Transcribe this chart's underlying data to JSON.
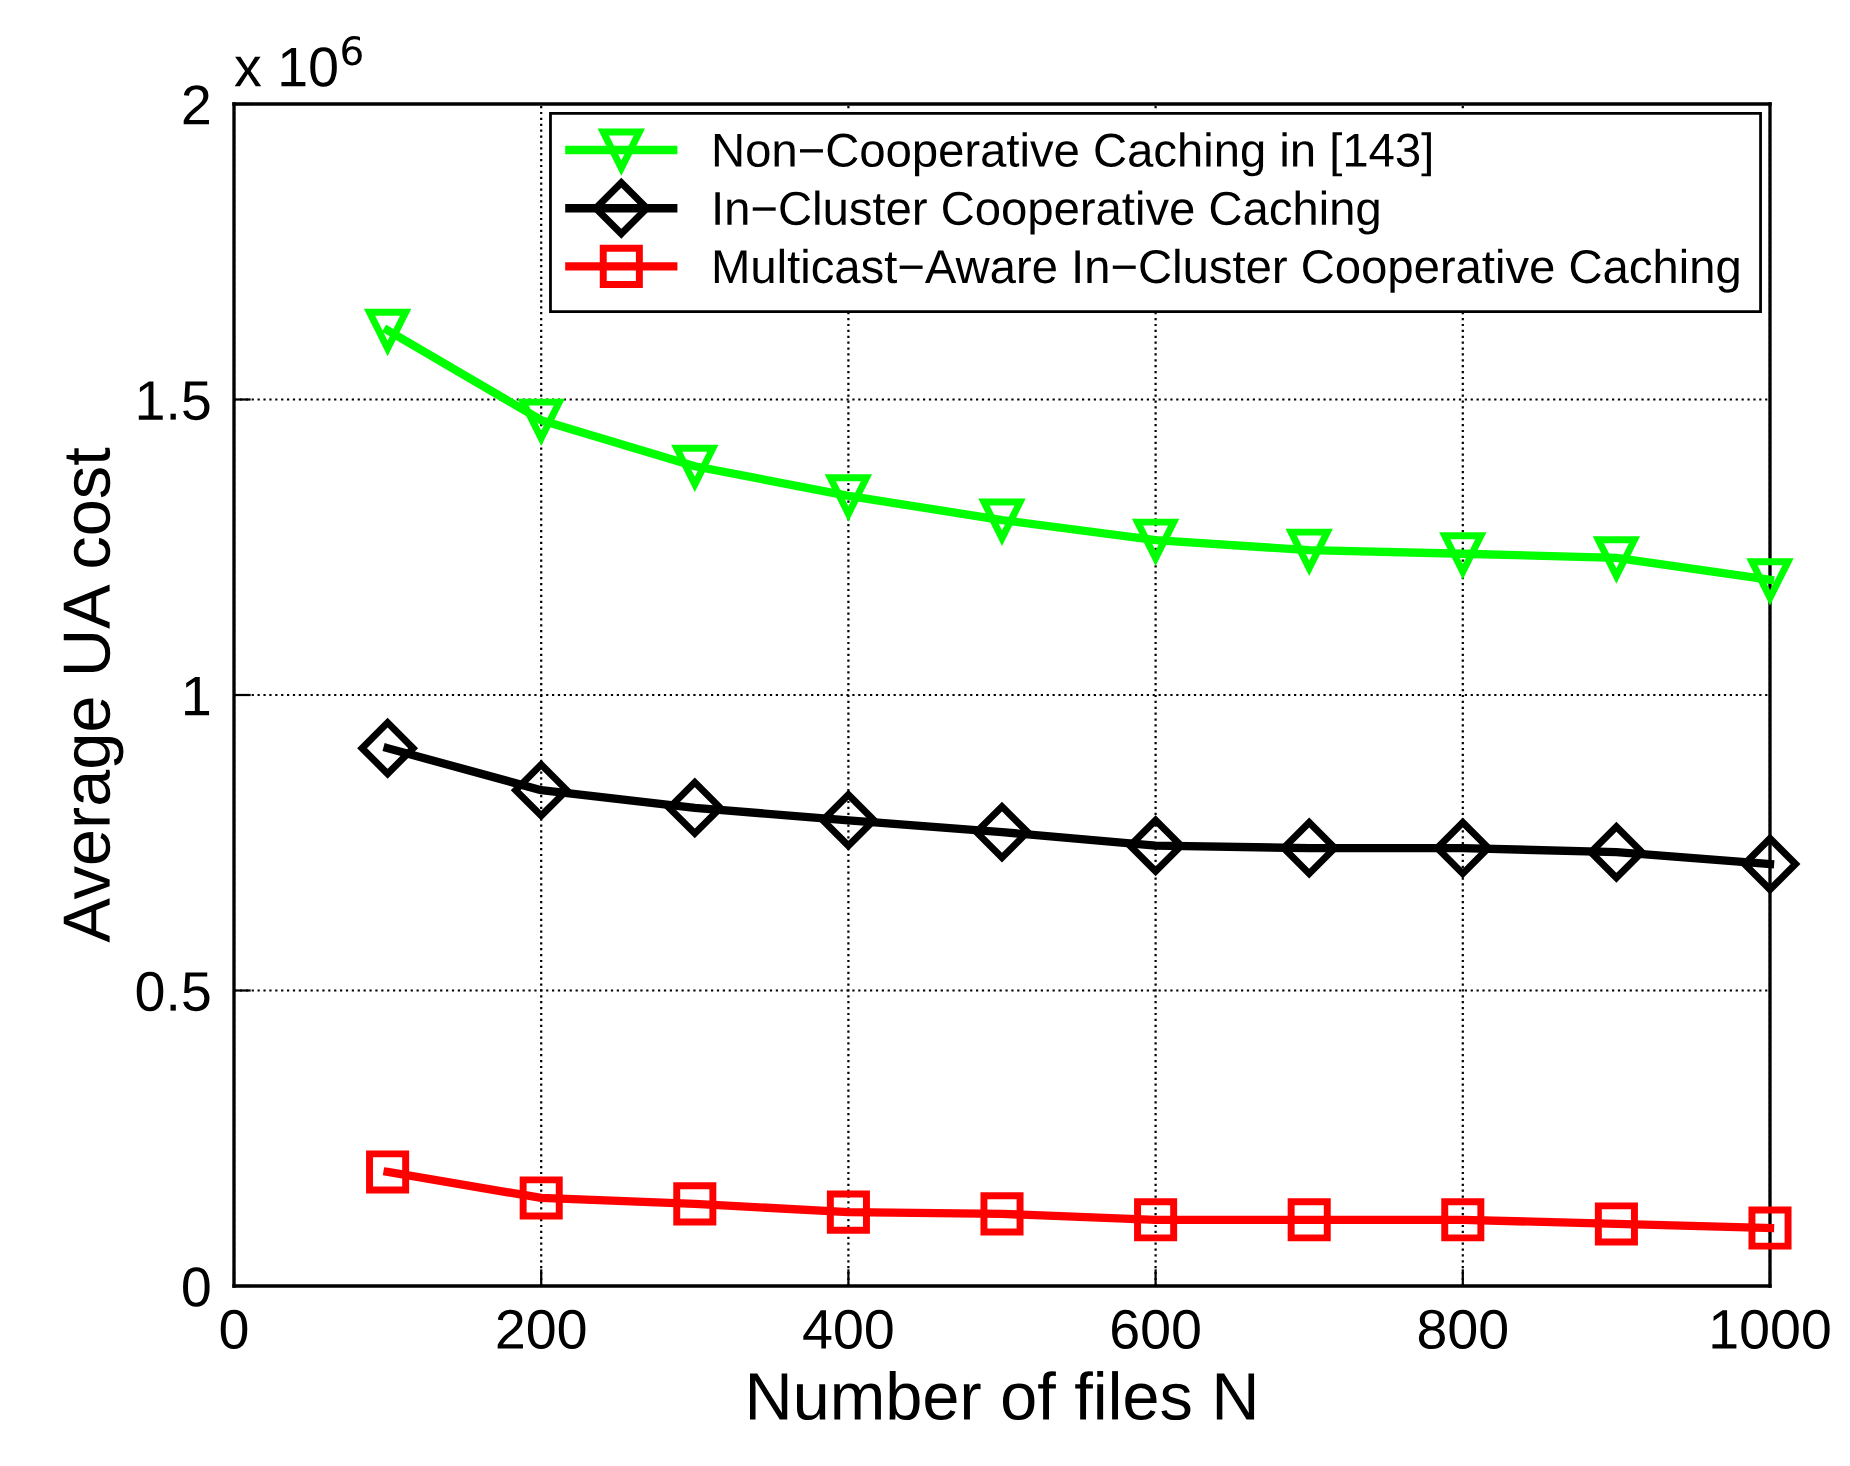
{
  "chart_data": {
    "type": "line",
    "xlabel": "Number of files N",
    "ylabel": "Average UA cost",
    "x": [
      100,
      200,
      300,
      400,
      500,
      600,
      700,
      800,
      900,
      1000
    ],
    "series": [
      {
        "name": "Non−Cooperative Caching in [143]",
        "color": "#00ff00",
        "marker": "triangle",
        "values": [
          1.617,
          1.465,
          1.387,
          1.337,
          1.296,
          1.262,
          1.245,
          1.239,
          1.232,
          1.195
        ]
      },
      {
        "name": "In−Cluster Cooperative Caching",
        "color": "#000000",
        "marker": "diamond",
        "values": [
          0.91,
          0.839,
          0.809,
          0.788,
          0.768,
          0.745,
          0.741,
          0.741,
          0.734,
          0.714
        ]
      },
      {
        "name": "Multicast−Aware In−Cluster Cooperative Caching",
        "color": "#ff0000",
        "marker": "square",
        "values": [
          0.193,
          0.149,
          0.139,
          0.125,
          0.122,
          0.112,
          0.112,
          0.112,
          0.105,
          0.098
        ]
      }
    ],
    "xlim": [
      0,
      1000
    ],
    "xticks": [
      0,
      200,
      400,
      600,
      800,
      1000
    ],
    "ylim": [
      0,
      2
    ],
    "yticks": [
      0,
      0.5,
      1,
      1.5,
      2
    ],
    "annotations": [
      "x 10$^{6}$"
    ],
    "grid": true,
    "legend": "top right",
    "line_style": "solid"
  }
}
